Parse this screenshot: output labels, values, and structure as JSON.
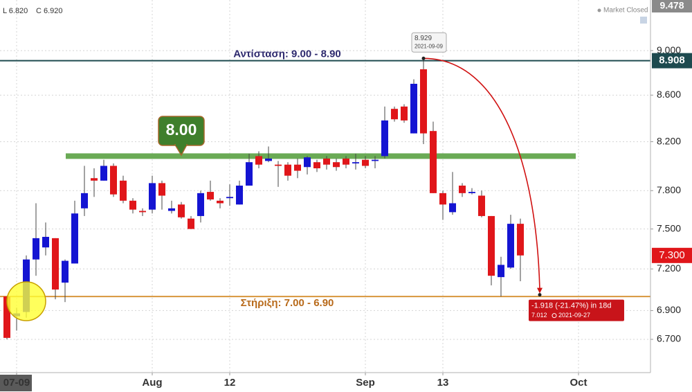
{
  "chart_data": {
    "type": "candlestick",
    "ohlc_labels": [
      "L 6.820",
      "C 6.920"
    ],
    "status": "Market Closed",
    "x": [
      0,
      1,
      2,
      3,
      4,
      5,
      6,
      7,
      8,
      9,
      10,
      11,
      12,
      13,
      14,
      15,
      16,
      17,
      18,
      19,
      20,
      21,
      22,
      23,
      24,
      25,
      26,
      27,
      28,
      29,
      30,
      31,
      32,
      33,
      34,
      35,
      36,
      37,
      38,
      39,
      40,
      41,
      42,
      43,
      44,
      45,
      46,
      47,
      48,
      49,
      50,
      51,
      52,
      53
    ],
    "open": [
      7.0,
      6.86,
      6.89,
      7.27,
      7.36,
      7.43,
      7.1,
      7.24,
      7.66,
      7.9,
      7.88,
      8.0,
      7.88,
      7.72,
      7.64,
      7.65,
      7.86,
      7.64,
      7.69,
      7.58,
      7.6,
      7.79,
      7.72,
      7.74,
      7.69,
      7.84,
      8.08,
      8.04,
      8.01,
      8.01,
      8.01,
      7.99,
      8.03,
      8.06,
      8.03,
      8.06,
      8.02,
      8.05,
      8.04,
      8.08,
      8.48,
      8.5,
      8.27,
      8.83,
      8.29,
      7.78,
      7.63,
      7.84,
      7.78,
      7.76,
      7.6,
      7.14,
      7.21,
      7.54
    ],
    "high": [
      7.0,
      6.92,
      7.3,
      7.7,
      7.55,
      7.43,
      7.27,
      7.72,
      8.0,
      7.98,
      8.05,
      8.02,
      7.92,
      7.74,
      7.66,
      7.92,
      7.88,
      7.72,
      7.71,
      7.6,
      7.8,
      7.88,
      7.74,
      7.85,
      7.88,
      8.1,
      8.12,
      8.16,
      8.04,
      8.03,
      8.06,
      8.08,
      8.05,
      8.08,
      8.06,
      8.08,
      8.1,
      8.08,
      8.08,
      8.5,
      8.5,
      8.52,
      8.74,
      8.93,
      8.37,
      7.8,
      7.95,
      7.86,
      7.82,
      7.8,
      7.6,
      7.29,
      7.61,
      7.58
    ],
    "low": [
      6.7,
      6.76,
      6.85,
      7.15,
      7.3,
      6.98,
      6.96,
      7.24,
      7.6,
      7.75,
      7.88,
      7.75,
      7.7,
      7.62,
      7.6,
      7.62,
      7.65,
      7.62,
      7.58,
      7.5,
      7.55,
      7.72,
      7.66,
      7.68,
      7.69,
      7.84,
      7.98,
      8.03,
      7.83,
      7.88,
      7.9,
      7.93,
      7.95,
      7.97,
      7.96,
      7.98,
      7.97,
      7.98,
      7.98,
      8.06,
      8.37,
      8.36,
      8.27,
      8.18,
      7.78,
      7.57,
      7.61,
      7.75,
      7.77,
      7.59,
      7.08,
      7.0,
      7.2,
      7.11
    ],
    "close": [
      6.71,
      6.88,
      7.27,
      7.43,
      7.44,
      7.05,
      7.26,
      7.62,
      7.78,
      7.88,
      8.0,
      7.77,
      7.72,
      7.65,
      7.63,
      7.86,
      7.76,
      7.66,
      7.59,
      7.5,
      7.78,
      7.73,
      7.7,
      7.75,
      7.84,
      8.03,
      8.01,
      8.06,
      8.0,
      7.92,
      7.96,
      8.07,
      7.98,
      8.01,
      7.99,
      8.01,
      8.03,
      8.0,
      8.05,
      8.38,
      8.39,
      8.38,
      8.7,
      8.27,
      7.78,
      7.69,
      7.7,
      7.78,
      7.79,
      7.6,
      7.15,
      7.23,
      7.54,
      7.3
    ],
    "up_color": "#1414d2",
    "down_color": "#e0161a",
    "xlim": [
      -0.714,
      66.43
    ],
    "xticks": [
      {
        "value": 1,
        "label": "07-09"
      },
      {
        "value": 15,
        "label": "Aug"
      },
      {
        "value": 23,
        "label": "12"
      },
      {
        "value": 37,
        "label": "Sep"
      },
      {
        "value": 45,
        "label": "13"
      },
      {
        "value": 59,
        "label": "Oct"
      }
    ],
    "ylim": [
      6.476,
      9.478
    ],
    "yticks": [
      {
        "value": 6.7,
        "label": "6.700"
      },
      {
        "value": 6.9,
        "label": "6.900"
      },
      {
        "value": 7.2,
        "label": "7.200"
      },
      {
        "value": 7.5,
        "label": "7.500"
      },
      {
        "value": 7.8,
        "label": "7.800"
      },
      {
        "value": 8.2,
        "label": "8.200"
      },
      {
        "value": 8.6,
        "label": "8.600"
      },
      {
        "value": 9.0,
        "label": "9.000"
      }
    ],
    "log_scale": true,
    "grid": true,
    "price_lines": [
      {
        "name": "Αντίσταση: 9.00 -  8.90",
        "value": 8.908,
        "color": "#1d4a4f",
        "text_color": "#2e2a6e"
      },
      {
        "name": "Στήριξη: 7.00 - 6.90",
        "value": 7.0,
        "color": "#d8963c",
        "text_color": "#b86a1a"
      }
    ],
    "last_price": {
      "value": 7.3,
      "label": "7.300",
      "color": "#e0161a"
    },
    "zone": {
      "value": 8.08,
      "color": "#6aaa55"
    },
    "callout": "8.00",
    "measure": {
      "start": {
        "x": 43,
        "value": 8.929,
        "date": "2021-09-09"
      },
      "end": {
        "x": 55,
        "value": 7.012,
        "date": "2021-09-27"
      },
      "label": "-1.918 (-21.47%) in 18d",
      "color": "#d01010"
    }
  }
}
